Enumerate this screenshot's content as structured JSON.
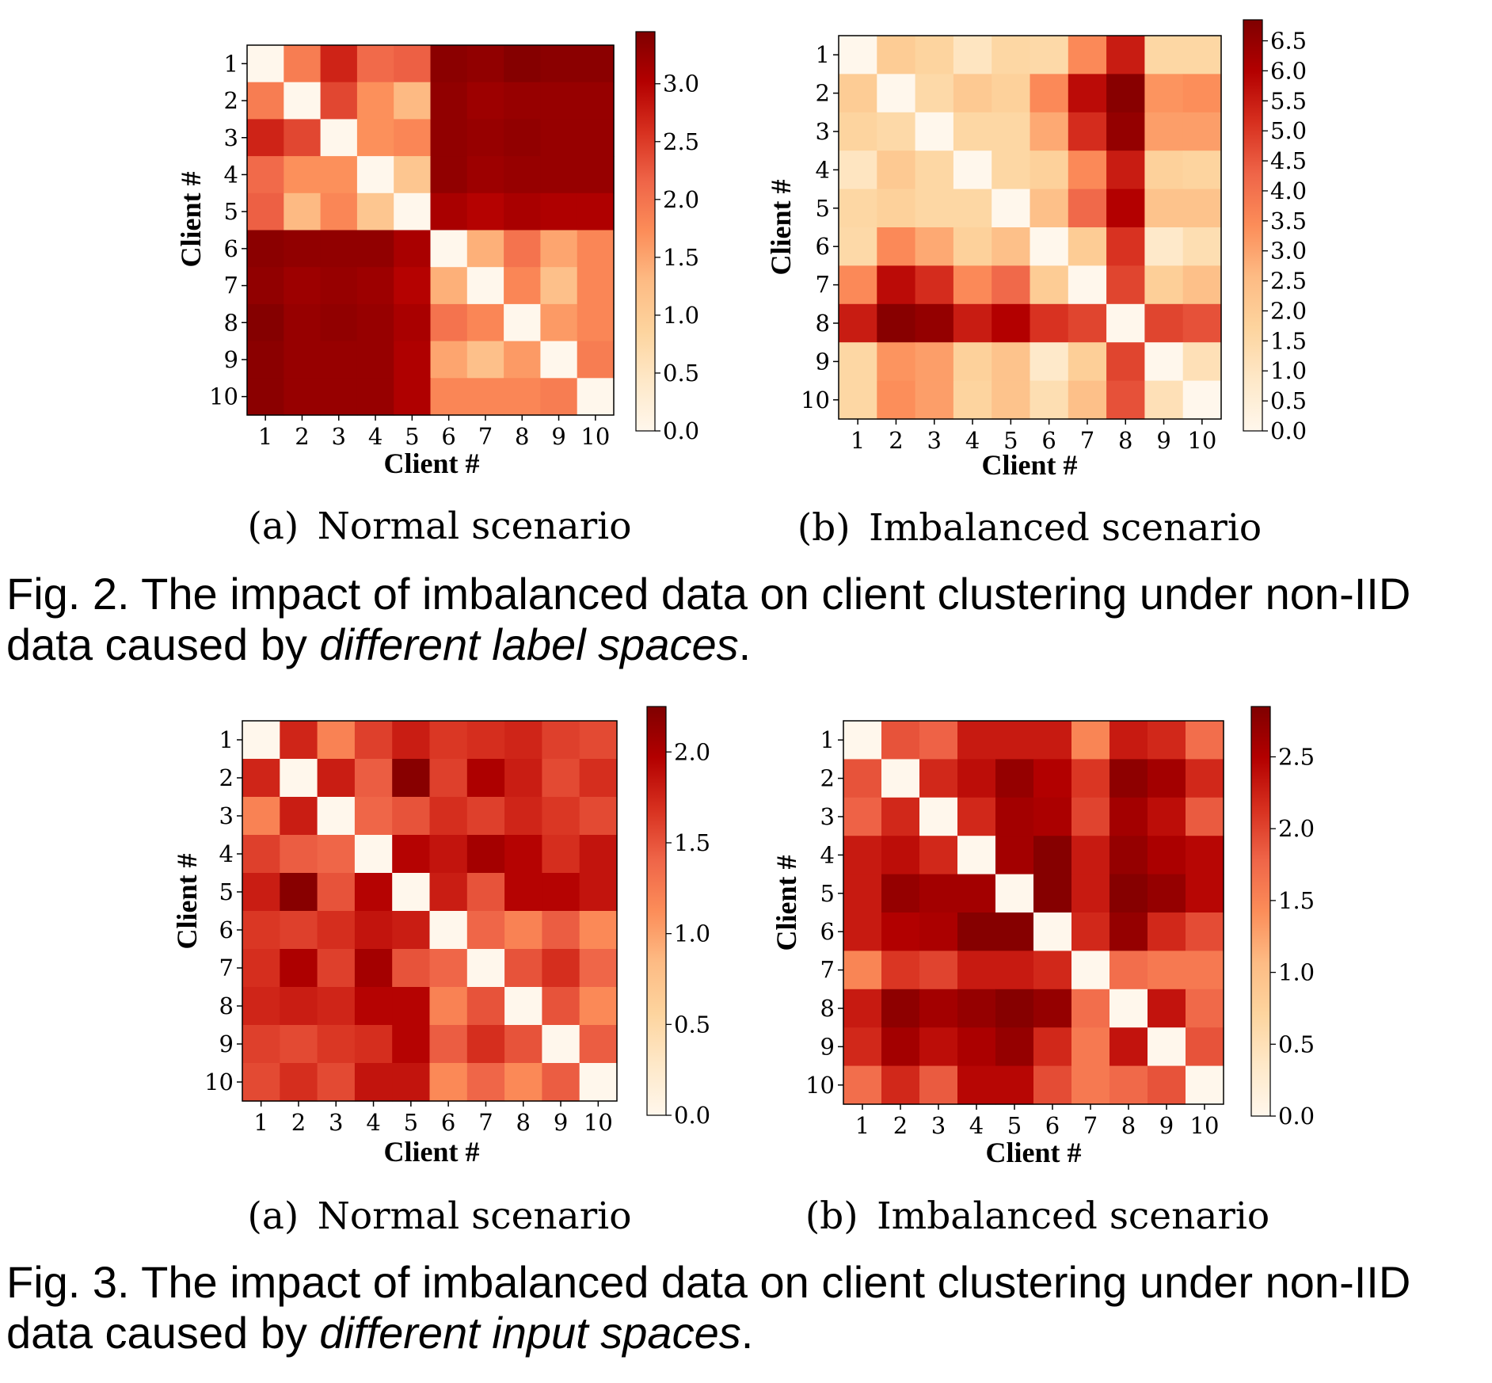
{
  "captions": {
    "fig2": {
      "prefix": "Fig. 2. The impact of imbalanced data on client clustering under non-IID",
      "line2_start": "data caused by ",
      "italic": "different label spaces",
      "end": "."
    },
    "fig3": {
      "prefix": "Fig. 3. The impact of imbalanced data on client clustering under non-IID",
      "line2_start": "data caused by ",
      "italic": "different input spaces",
      "end": "."
    }
  },
  "colormap": "OrRd",
  "chart_data": [
    {
      "type": "heatmap",
      "subcaption": "(a) Normal scenario",
      "xlabel": "Client #",
      "ylabel": "Client #",
      "categories": [
        "1",
        "2",
        "3",
        "4",
        "5",
        "6",
        "7",
        "8",
        "9",
        "10"
      ],
      "colorbar_range": [
        0.0,
        3.45
      ],
      "colorbar_ticks": [
        "0.0",
        "0.5",
        "1.0",
        "1.5",
        "2.0",
        "2.5",
        "3.0"
      ],
      "colorbar_tick_values": [
        0.0,
        0.5,
        1.0,
        1.5,
        2.0,
        2.5,
        3.0
      ],
      "values": [
        [
          0.0,
          1.9,
          2.7,
          2.1,
          2.2,
          3.35,
          3.3,
          3.4,
          3.35,
          3.35
        ],
        [
          1.9,
          0.0,
          2.4,
          1.7,
          1.3,
          3.3,
          3.2,
          3.25,
          3.25,
          3.25
        ],
        [
          2.7,
          2.4,
          0.0,
          1.7,
          1.8,
          3.3,
          3.25,
          3.3,
          3.25,
          3.25
        ],
        [
          2.1,
          1.7,
          1.7,
          0.0,
          1.1,
          3.3,
          3.2,
          3.25,
          3.25,
          3.25
        ],
        [
          2.2,
          1.3,
          1.8,
          1.1,
          0.0,
          3.1,
          3.0,
          3.1,
          3.05,
          3.05
        ],
        [
          3.35,
          3.3,
          3.3,
          3.3,
          3.1,
          0.0,
          1.4,
          2.0,
          1.5,
          1.8
        ],
        [
          3.3,
          3.2,
          3.25,
          3.2,
          3.0,
          1.4,
          0.0,
          1.8,
          1.2,
          1.8
        ],
        [
          3.4,
          3.25,
          3.3,
          3.25,
          3.1,
          2.0,
          1.8,
          0.0,
          1.6,
          1.8
        ],
        [
          3.35,
          3.25,
          3.25,
          3.25,
          3.05,
          1.5,
          1.2,
          1.6,
          0.0,
          1.9
        ],
        [
          3.35,
          3.25,
          3.25,
          3.25,
          3.05,
          1.8,
          1.8,
          1.8,
          1.9,
          0.0
        ]
      ]
    },
    {
      "type": "heatmap",
      "subcaption": "(b) Imbalanced scenario",
      "xlabel": "Client #",
      "ylabel": "Client #",
      "categories": [
        "1",
        "2",
        "3",
        "4",
        "5",
        "6",
        "7",
        "8",
        "9",
        "10"
      ],
      "colorbar_range": [
        0.0,
        6.85
      ],
      "colorbar_ticks": [
        "0.0",
        "0.5",
        "1.0",
        "1.5",
        "2.0",
        "2.5",
        "3.0",
        "3.5",
        "4.0",
        "4.5",
        "5.0",
        "5.5",
        "6.0",
        "6.5"
      ],
      "colorbar_tick_values": [
        0.0,
        0.5,
        1.0,
        1.5,
        2.0,
        2.5,
        3.0,
        3.5,
        4.0,
        4.5,
        5.0,
        5.5,
        6.0,
        6.5
      ],
      "values": [
        [
          0.0,
          2.0,
          1.7,
          1.0,
          1.6,
          1.5,
          3.5,
          5.5,
          1.6,
          1.6
        ],
        [
          2.0,
          0.0,
          1.5,
          2.1,
          1.8,
          3.5,
          5.8,
          6.7,
          3.3,
          3.4
        ],
        [
          1.7,
          1.5,
          0.0,
          1.6,
          1.6,
          2.9,
          5.2,
          6.5,
          3.1,
          3.1
        ],
        [
          1.0,
          2.1,
          1.6,
          0.0,
          1.6,
          1.8,
          3.5,
          5.5,
          1.8,
          1.7
        ],
        [
          1.6,
          1.8,
          1.6,
          1.6,
          0.0,
          2.4,
          4.2,
          6.0,
          2.3,
          2.3
        ],
        [
          1.5,
          3.5,
          2.9,
          1.8,
          2.4,
          0.0,
          2.0,
          5.1,
          0.8,
          1.3
        ],
        [
          3.5,
          5.8,
          5.2,
          3.5,
          4.2,
          2.0,
          0.0,
          4.8,
          1.9,
          2.4
        ],
        [
          5.5,
          6.7,
          6.5,
          5.5,
          6.0,
          5.1,
          4.8,
          0.0,
          4.8,
          4.6
        ],
        [
          1.6,
          3.3,
          3.1,
          1.8,
          2.3,
          0.8,
          1.9,
          4.8,
          0.0,
          1.2
        ],
        [
          1.6,
          3.4,
          3.1,
          1.7,
          2.3,
          1.3,
          2.4,
          4.6,
          1.2,
          0.0
        ]
      ]
    },
    {
      "type": "heatmap",
      "subcaption": "(a) Normal scenario",
      "xlabel": "Client #",
      "ylabel": "Client #",
      "categories": [
        "1",
        "2",
        "3",
        "4",
        "5",
        "6",
        "7",
        "8",
        "9",
        "10"
      ],
      "colorbar_range": [
        0.0,
        2.25
      ],
      "colorbar_ticks": [
        "0.0",
        "0.5",
        "1.0",
        "1.5",
        "2.0"
      ],
      "colorbar_tick_values": [
        0.0,
        0.5,
        1.0,
        1.5,
        2.0
      ],
      "values": [
        [
          0.0,
          1.75,
          1.2,
          1.6,
          1.8,
          1.65,
          1.7,
          1.75,
          1.6,
          1.55
        ],
        [
          1.75,
          0.0,
          1.8,
          1.45,
          2.2,
          1.6,
          2.0,
          1.8,
          1.55,
          1.7
        ],
        [
          1.2,
          1.8,
          0.0,
          1.4,
          1.5,
          1.7,
          1.6,
          1.75,
          1.65,
          1.55
        ],
        [
          1.6,
          1.45,
          1.4,
          0.0,
          1.95,
          1.85,
          2.05,
          1.95,
          1.7,
          1.85
        ],
        [
          1.8,
          2.2,
          1.5,
          1.95,
          0.0,
          1.8,
          1.5,
          1.95,
          1.95,
          1.85
        ],
        [
          1.65,
          1.6,
          1.7,
          1.85,
          1.8,
          0.0,
          1.4,
          1.2,
          1.45,
          1.15
        ],
        [
          1.7,
          2.0,
          1.6,
          2.05,
          1.5,
          1.4,
          0.0,
          1.5,
          1.7,
          1.4
        ],
        [
          1.75,
          1.8,
          1.75,
          1.95,
          1.95,
          1.2,
          1.5,
          0.0,
          1.5,
          1.15
        ],
        [
          1.6,
          1.55,
          1.65,
          1.7,
          1.95,
          1.45,
          1.7,
          1.5,
          0.0,
          1.45
        ],
        [
          1.55,
          1.7,
          1.55,
          1.85,
          1.85,
          1.15,
          1.4,
          1.15,
          1.45,
          0.0
        ]
      ]
    },
    {
      "type": "heatmap",
      "subcaption": "(b) Imbalanced scenario",
      "xlabel": "Client #",
      "ylabel": "Client #",
      "categories": [
        "1",
        "2",
        "3",
        "4",
        "5",
        "6",
        "7",
        "8",
        "9",
        "10"
      ],
      "colorbar_range": [
        0.0,
        2.85
      ],
      "colorbar_ticks": [
        "0.0",
        "0.5",
        "1.0",
        "1.5",
        "2.0",
        "2.5"
      ],
      "colorbar_tick_values": [
        0.0,
        0.5,
        1.0,
        1.5,
        2.0,
        2.5
      ],
      "values": [
        [
          0.0,
          1.9,
          1.8,
          2.3,
          2.3,
          2.3,
          1.5,
          2.3,
          2.2,
          1.7
        ],
        [
          1.9,
          0.0,
          2.2,
          2.4,
          2.7,
          2.5,
          2.1,
          2.75,
          2.6,
          2.2
        ],
        [
          1.8,
          2.2,
          0.0,
          2.2,
          2.6,
          2.55,
          2.0,
          2.6,
          2.4,
          1.85
        ],
        [
          2.3,
          2.4,
          2.2,
          0.0,
          2.6,
          2.8,
          2.3,
          2.7,
          2.55,
          2.45
        ],
        [
          2.3,
          2.7,
          2.6,
          2.6,
          0.0,
          2.8,
          2.3,
          2.8,
          2.7,
          2.45
        ],
        [
          2.3,
          2.5,
          2.55,
          2.8,
          2.8,
          0.0,
          2.2,
          2.7,
          2.2,
          1.95
        ],
        [
          1.5,
          2.1,
          2.0,
          2.3,
          2.3,
          2.2,
          0.0,
          1.7,
          1.6,
          1.6
        ],
        [
          2.3,
          2.75,
          2.6,
          2.7,
          2.8,
          2.7,
          1.7,
          0.0,
          2.35,
          1.75
        ],
        [
          2.2,
          2.6,
          2.4,
          2.55,
          2.7,
          2.2,
          1.6,
          2.35,
          0.0,
          1.9
        ],
        [
          1.7,
          2.2,
          1.85,
          2.45,
          2.45,
          1.95,
          1.6,
          1.75,
          1.9,
          0.0
        ]
      ]
    }
  ]
}
